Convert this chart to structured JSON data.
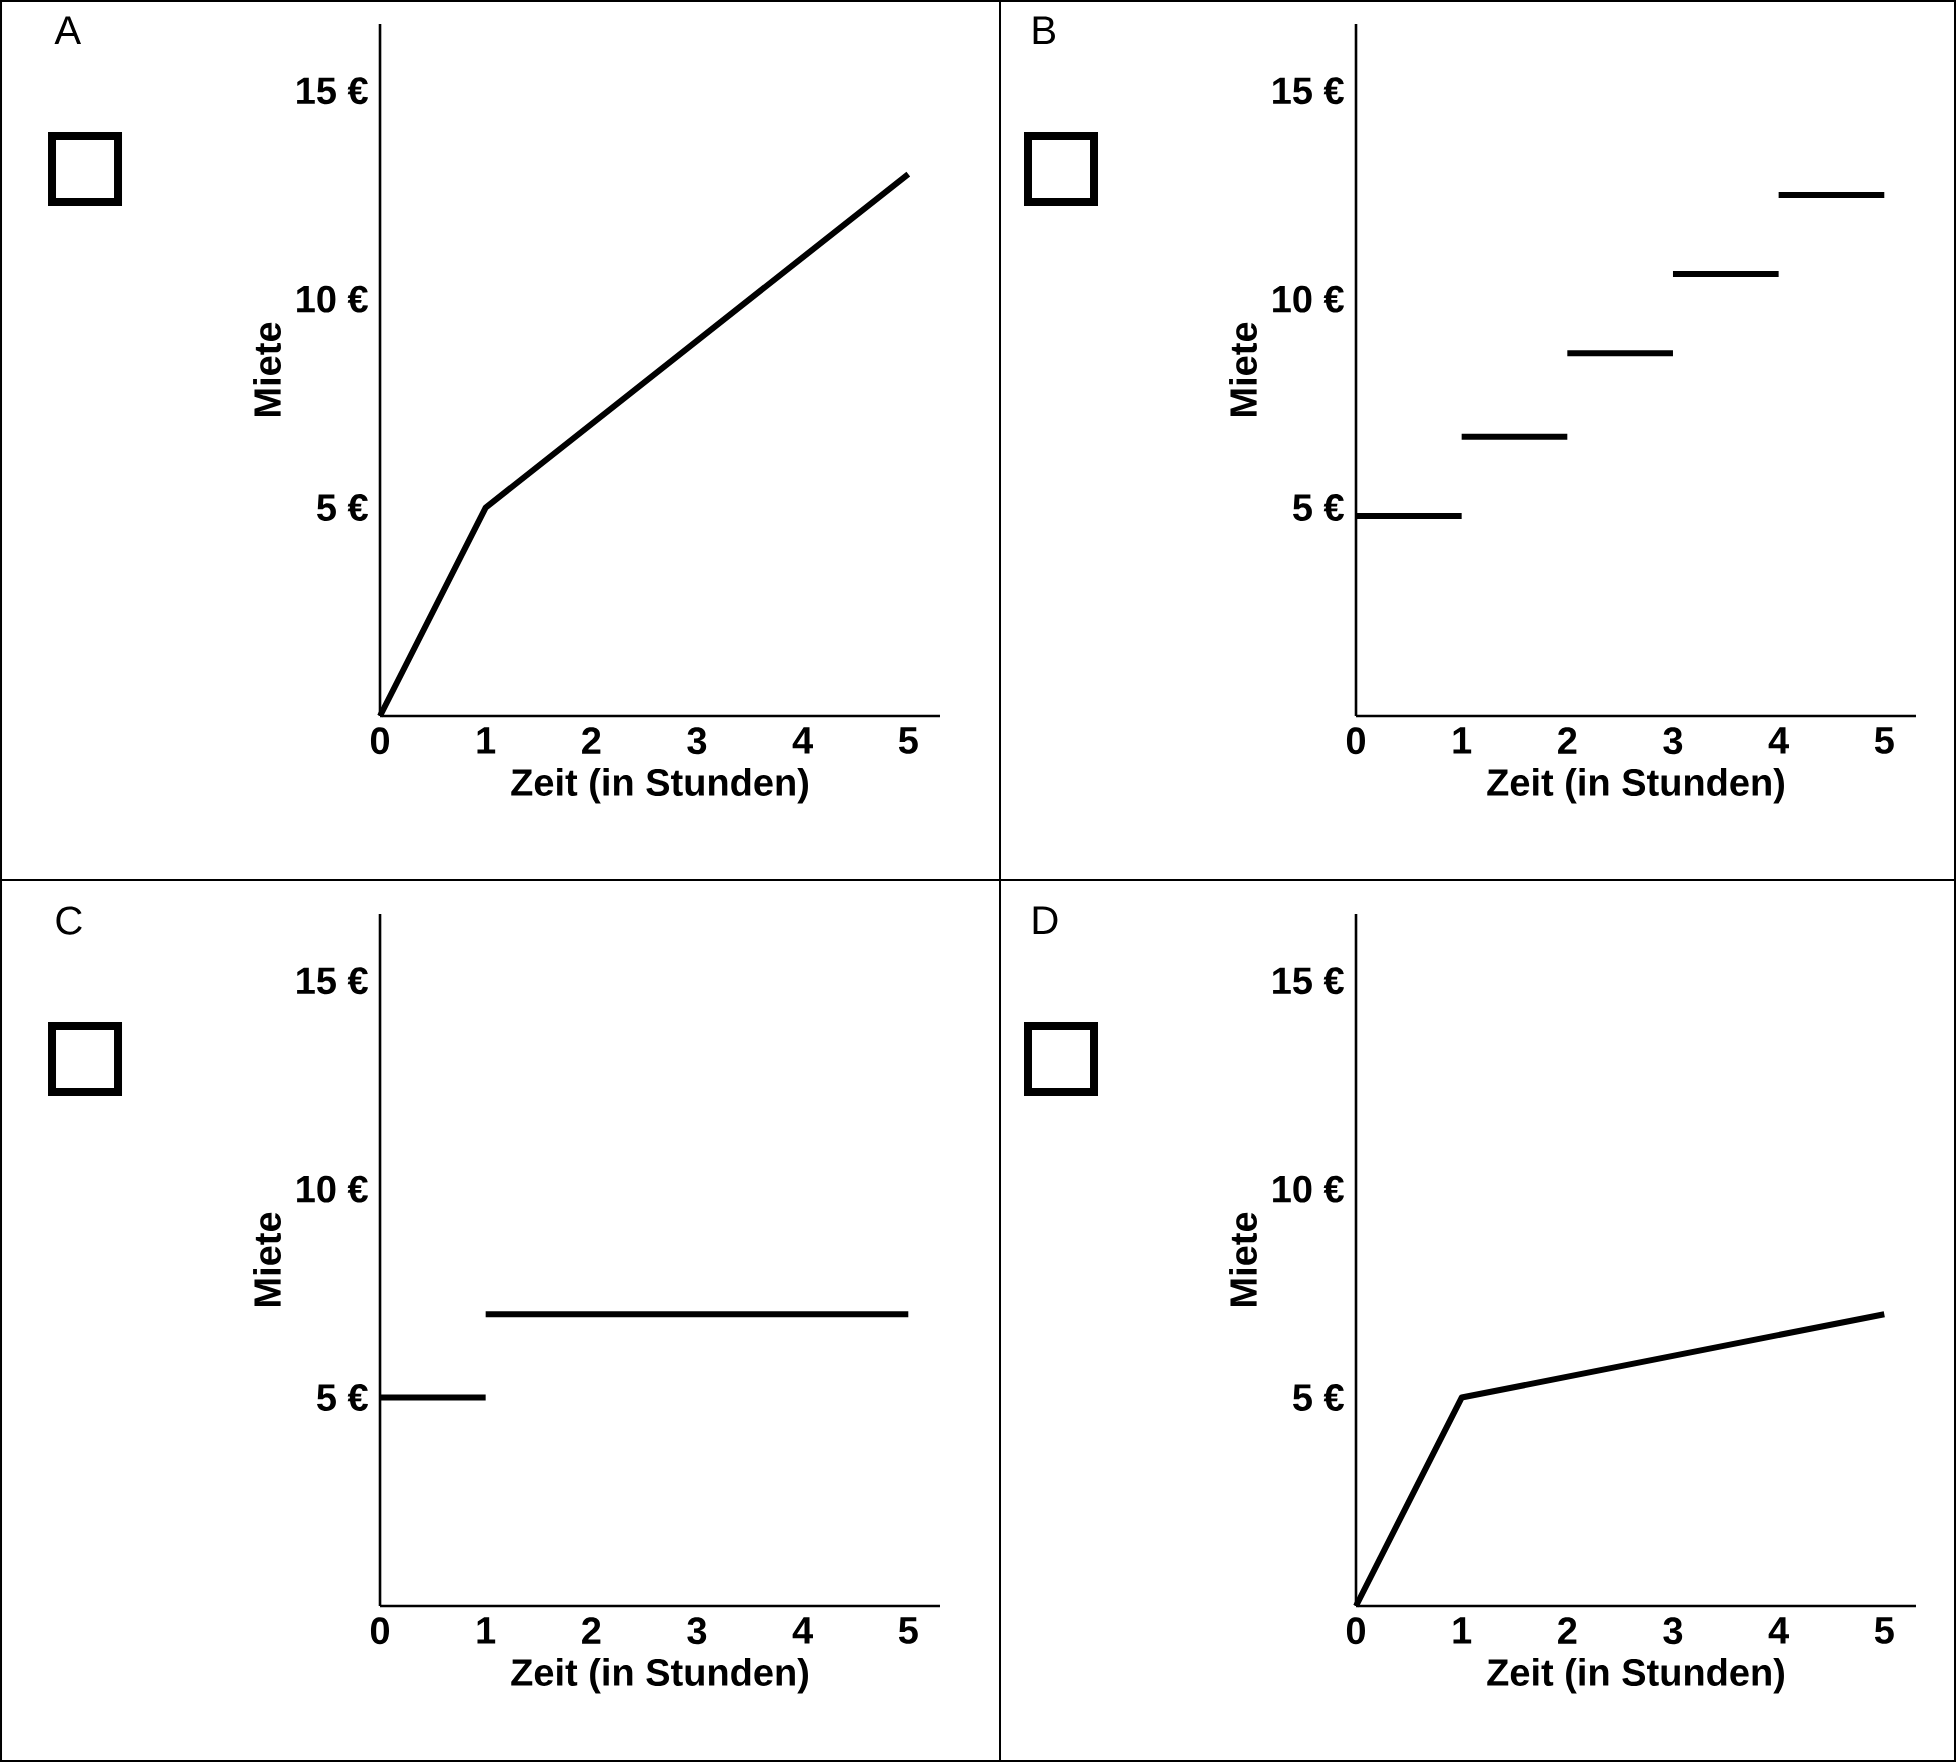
{
  "chart_data": [
    {
      "type": "line",
      "title": "A",
      "xlabel": "Zeit (in Stunden)",
      "ylabel": "Miete",
      "color": "#000000",
      "x": [
        0,
        1,
        5
      ],
      "values": [
        0,
        5,
        13
      ],
      "xlim": [
        0,
        5.3
      ],
      "ylim": [
        0,
        16.6
      ],
      "xticks": [
        0,
        1,
        2,
        3,
        4,
        5
      ],
      "yticks": [
        {
          "value": 5,
          "label": "5 €"
        },
        {
          "value": 10,
          "label": "10 €"
        },
        {
          "value": 15,
          "label": "15 €"
        }
      ]
    },
    {
      "type": "line",
      "title": "B",
      "xlabel": "Zeit (in Stunden)",
      "ylabel": "Miete",
      "color": "#000000",
      "series": [
        {
          "x": [
            0,
            1
          ],
          "values": [
            4.8,
            4.8
          ]
        },
        {
          "x": [
            1,
            2
          ],
          "values": [
            6.7,
            6.7
          ]
        },
        {
          "x": [
            2,
            3
          ],
          "values": [
            8.7,
            8.7
          ]
        },
        {
          "x": [
            3,
            4
          ],
          "values": [
            10.6,
            10.6
          ]
        },
        {
          "x": [
            4,
            5
          ],
          "values": [
            12.5,
            12.5
          ]
        }
      ],
      "xlim": [
        0,
        5.3
      ],
      "ylim": [
        0,
        16.6
      ],
      "xticks": [
        0,
        1,
        2,
        3,
        4,
        5
      ],
      "yticks": [
        {
          "value": 5,
          "label": "5 €"
        },
        {
          "value": 10,
          "label": "10 €"
        },
        {
          "value": 15,
          "label": "15 €"
        }
      ]
    },
    {
      "type": "line",
      "title": "C",
      "xlabel": "Zeit (in Stunden)",
      "ylabel": "Miete",
      "color": "#000000",
      "series": [
        {
          "x": [
            0,
            1
          ],
          "values": [
            5,
            5
          ]
        },
        {
          "x": [
            1,
            5
          ],
          "values": [
            7,
            7
          ]
        }
      ],
      "xlim": [
        0,
        5.3
      ],
      "ylim": [
        0,
        16.6
      ],
      "xticks": [
        0,
        1,
        2,
        3,
        4,
        5
      ],
      "yticks": [
        {
          "value": 5,
          "label": "5 €"
        },
        {
          "value": 10,
          "label": "10 €"
        },
        {
          "value": 15,
          "label": "15 €"
        }
      ]
    },
    {
      "type": "line",
      "title": "D",
      "xlabel": "Zeit (in Stunden)",
      "ylabel": "Miete",
      "color": "#000000",
      "x": [
        0,
        1,
        5
      ],
      "values": [
        0,
        5,
        7
      ],
      "xlim": [
        0,
        5.3
      ],
      "ylim": [
        0,
        16.6
      ],
      "xticks": [
        0,
        1,
        2,
        3,
        4,
        5
      ],
      "yticks": [
        {
          "value": 5,
          "label": "5 €"
        },
        {
          "value": 10,
          "label": "10 €"
        },
        {
          "value": 15,
          "label": "15 €"
        }
      ]
    }
  ]
}
